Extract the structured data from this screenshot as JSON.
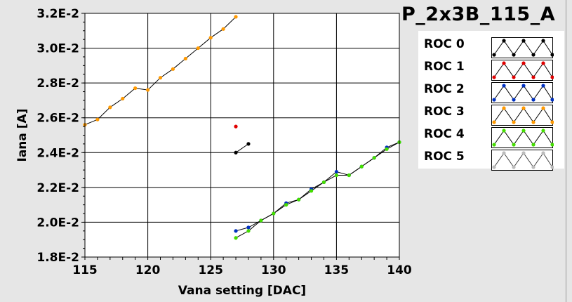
{
  "chart_data": {
    "type": "line",
    "title": "P_2x3B_115_A",
    "xlabel": "Vana setting [DAC]",
    "ylabel": "Iana [A]",
    "xlim": [
      115,
      140
    ],
    "ylim": [
      0.018,
      0.032
    ],
    "xticks": [
      115,
      120,
      125,
      130,
      135,
      140
    ],
    "xtick_labels": [
      "115",
      "120",
      "125",
      "130",
      "135",
      "140"
    ],
    "yticks": [
      0.018,
      0.02,
      0.022,
      0.024,
      0.026,
      0.028,
      0.03,
      0.032
    ],
    "ytick_labels": [
      "1.8E-2",
      "2.0E-2",
      "2.2E-2",
      "2.4E-2",
      "2.6E-2",
      "2.8E-2",
      "3.0E-2",
      "3.2E-2"
    ],
    "grid": true,
    "legend_position": "right",
    "series": [
      {
        "name": "ROC 0",
        "color": "#000000",
        "points": [
          [
            127,
            0.024
          ],
          [
            128,
            0.0245
          ]
        ]
      },
      {
        "name": "ROC 1",
        "color": "#e00000",
        "points": [
          [
            127,
            0.0255
          ]
        ]
      },
      {
        "name": "ROC 2",
        "color": "#0030c0",
        "points": [
          [
            127,
            0.0195
          ],
          [
            128,
            0.0197
          ],
          [
            129,
            0.0201
          ],
          [
            130,
            0.0205
          ],
          [
            131,
            0.0211
          ],
          [
            132,
            0.0213
          ],
          [
            133,
            0.0219
          ],
          [
            134,
            0.0223
          ],
          [
            135,
            0.0229
          ],
          [
            136,
            0.0227
          ],
          [
            137,
            0.0232
          ],
          [
            138,
            0.0237
          ],
          [
            139,
            0.0243
          ],
          [
            140,
            0.0246
          ]
        ]
      },
      {
        "name": "ROC 3",
        "color": "#ff9900",
        "points": [
          [
            115,
            0.0256
          ],
          [
            116,
            0.0259
          ],
          [
            117,
            0.0266
          ],
          [
            118,
            0.0271
          ],
          [
            119,
            0.0277
          ],
          [
            120,
            0.0276
          ],
          [
            121,
            0.0283
          ],
          [
            122,
            0.0288
          ],
          [
            123,
            0.0294
          ],
          [
            124,
            0.03
          ],
          [
            125,
            0.0306
          ],
          [
            126,
            0.0311
          ],
          [
            127,
            0.0318
          ]
        ]
      },
      {
        "name": "ROC 4",
        "color": "#44dd00",
        "points": [
          [
            127,
            0.0191
          ],
          [
            128,
            0.0195
          ],
          [
            129,
            0.0201
          ],
          [
            130,
            0.0205
          ],
          [
            131,
            0.021
          ],
          [
            132,
            0.0213
          ],
          [
            133,
            0.0218
          ],
          [
            134,
            0.0223
          ],
          [
            135,
            0.0227
          ],
          [
            136,
            0.0227
          ],
          [
            137,
            0.0232
          ],
          [
            138,
            0.0237
          ],
          [
            139,
            0.0242
          ],
          [
            140,
            0.0246
          ]
        ]
      },
      {
        "name": "ROC 5",
        "color": "#bbbbbb",
        "points": []
      }
    ]
  }
}
